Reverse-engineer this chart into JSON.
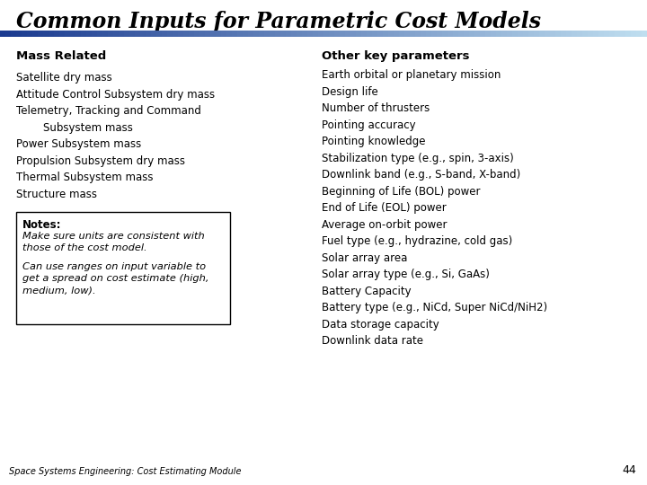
{
  "title": "Common Inputs for Parametric Cost Models",
  "title_fontsize": 17,
  "bg_color": "#ffffff",
  "mass_header": "Mass Related",
  "mass_items": [
    "Satellite dry mass",
    "Attitude Control Subsystem dry mass",
    "Telemetry, Tracking and Command",
    "        Subsystem mass",
    "Power Subsystem mass",
    "Propulsion Subsystem dry mass",
    "Thermal Subsystem mass",
    "Structure mass"
  ],
  "other_header": "Other key parameters",
  "other_items": [
    "Earth orbital or planetary mission",
    "Design life",
    "Number of thrusters",
    "Pointing accuracy",
    "Pointing knowledge",
    "Stabilization type (e.g., spin, 3-axis)",
    "Downlink band (e.g., S-band, X-band)",
    "Beginning of Life (BOL) power",
    "End of Life (EOL) power",
    "Average on-orbit power",
    "Fuel type (e.g., hydrazine, cold gas)",
    "Solar array area",
    "Solar array type (e.g., Si, GaAs)",
    "Battery Capacity",
    "Battery type (e.g., NiCd, Super NiCd/NiH2)",
    "Data storage capacity",
    "Downlink data rate"
  ],
  "notes_header": "Notes:",
  "notes_lines": [
    "Make sure units are consistent with",
    "those of the cost model.",
    "",
    "Can use ranges on input variable to",
    "get a spread on cost estimate (high,",
    "medium, low)."
  ],
  "footer_text": "Space Systems Engineering: Cost Estimating Module",
  "page_number": "44",
  "item_fontsize": 8.5,
  "header_fontsize": 9.5,
  "notes_fontsize": 8.5
}
